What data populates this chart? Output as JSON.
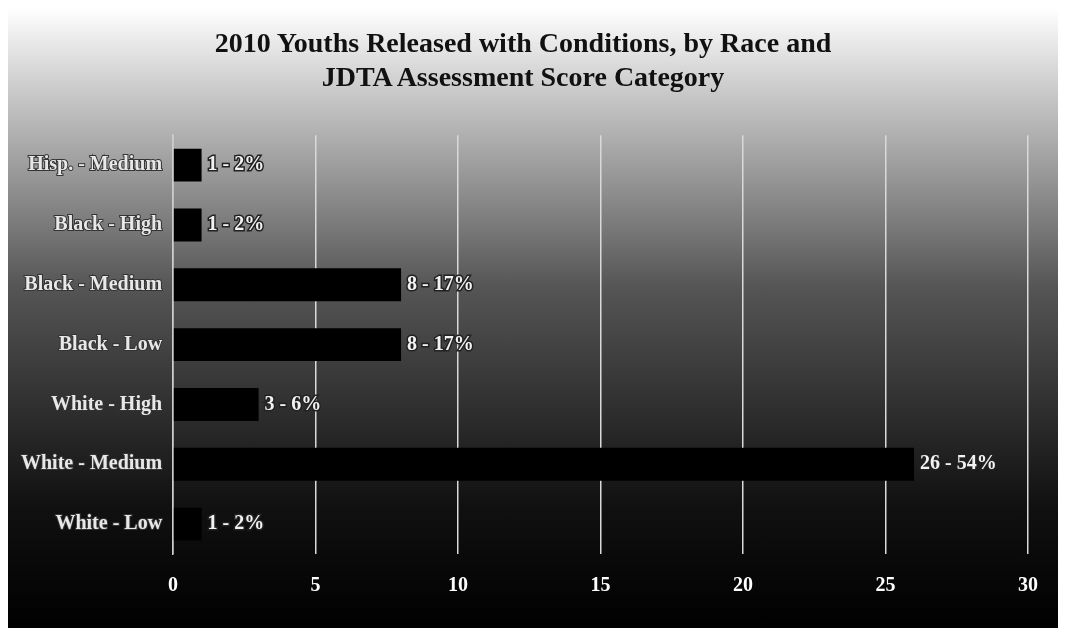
{
  "chart_data": {
    "type": "bar",
    "orientation": "horizontal",
    "title": "2010 Youths Released with Conditions, by Race and\nJDTA Assessment Score Category",
    "categories": [
      "Hisp. - Medium",
      "Black - High",
      "Black - Medium",
      "Black - Low",
      "White - High",
      "White - Medium",
      "White - Low"
    ],
    "values": [
      1,
      1,
      8,
      8,
      3,
      26,
      1
    ],
    "value_labels": [
      "1 - 2%",
      "1 - 2%",
      "8 - 17%",
      "8 - 17%",
      "3 - 6%",
      "26 - 54%",
      "1 - 2%"
    ],
    "color": "#000000",
    "xlim": [
      0,
      30
    ],
    "xticks": [
      0,
      5,
      10,
      15,
      20,
      25,
      30
    ],
    "grid": "x",
    "legend": false
  }
}
